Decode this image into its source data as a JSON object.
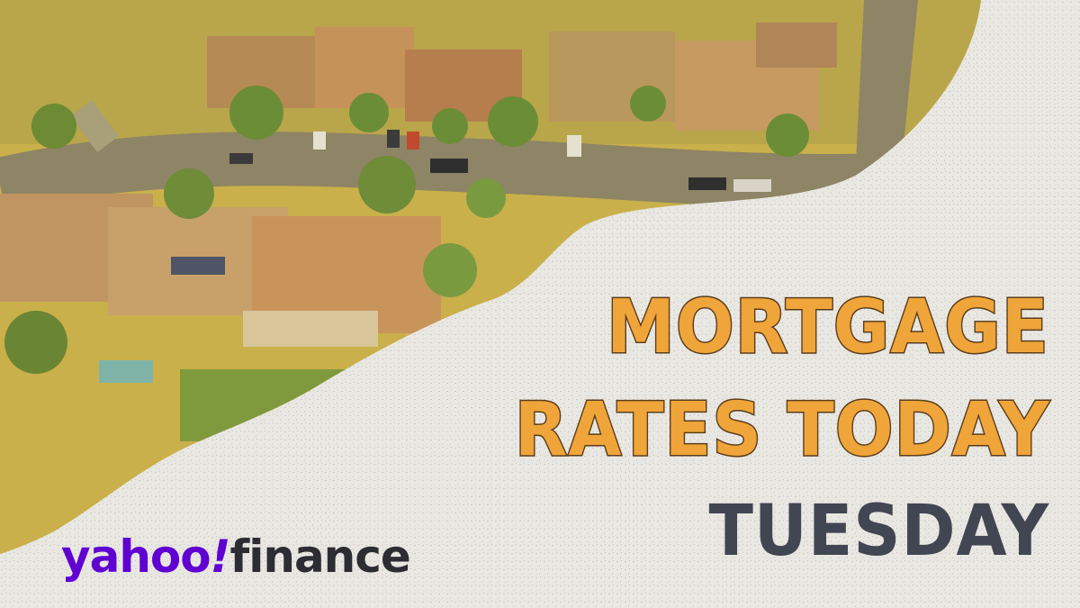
{
  "headline": {
    "line1": "MORTGAGE",
    "line2": "RATES TODAY",
    "line3": "TUESDAY"
  },
  "logo": {
    "brand": "yahoo",
    "mark": "!",
    "product": "finance"
  },
  "colors": {
    "headline_fill": "#f0a53a",
    "headline_outline": "#5a3d1c",
    "day_text": "#414652",
    "logo_purple": "#6001d2",
    "logo_dark": "#2c2d33",
    "paper": "#e9e7e2",
    "photo_tint": "#c9b04a"
  },
  "background": {
    "photo": "aerial-suburban-neighborhood-image"
  }
}
